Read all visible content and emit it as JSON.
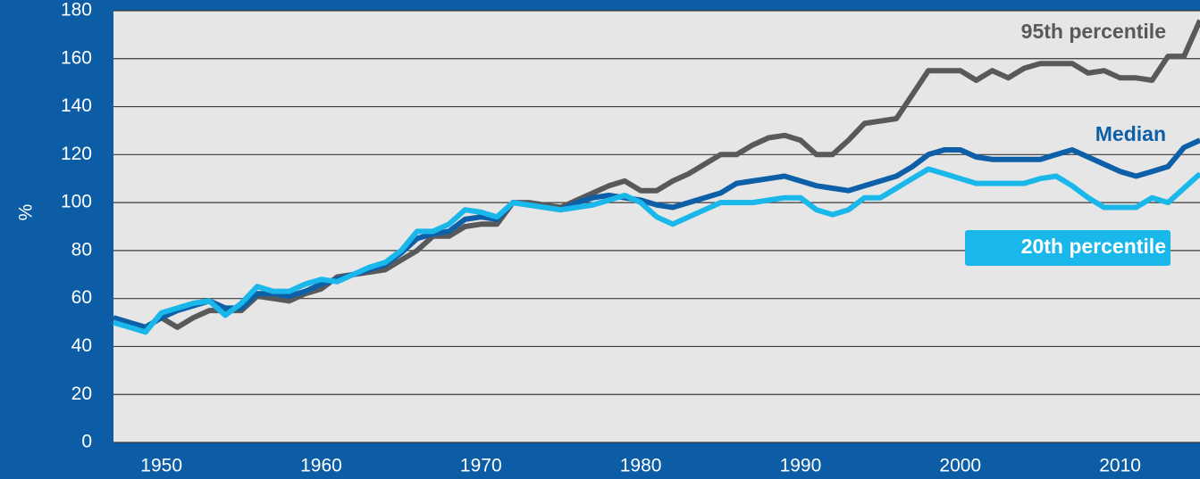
{
  "chart_data": {
    "type": "line",
    "y_label": "%",
    "x": [
      1947,
      1948,
      1949,
      1950,
      1951,
      1952,
      1953,
      1954,
      1955,
      1956,
      1957,
      1958,
      1959,
      1960,
      1961,
      1962,
      1963,
      1964,
      1965,
      1966,
      1967,
      1968,
      1969,
      1970,
      1971,
      1972,
      1973,
      1974,
      1975,
      1976,
      1977,
      1978,
      1979,
      1980,
      1981,
      1982,
      1983,
      1984,
      1985,
      1986,
      1987,
      1988,
      1989,
      1990,
      1991,
      1992,
      1993,
      1994,
      1995,
      1996,
      1997,
      1998,
      1999,
      2000,
      2001,
      2002,
      2003,
      2004,
      2005,
      2006,
      2007,
      2008,
      2009,
      2010,
      2011,
      2012,
      2013,
      2014,
      2015
    ],
    "series": [
      {
        "name": "95th percentile",
        "color": "#58595b",
        "values": [
          52,
          50,
          48,
          52,
          48,
          52,
          55,
          55,
          55,
          61,
          60,
          59,
          62,
          64,
          69,
          70,
          71,
          72,
          76,
          80,
          86,
          86,
          90,
          91,
          91,
          100,
          100,
          99,
          98,
          101,
          104,
          107,
          109,
          105,
          105,
          109,
          112,
          116,
          120,
          120,
          124,
          127,
          128,
          126,
          120,
          120,
          126,
          133,
          134,
          135,
          145,
          155,
          155,
          155,
          151,
          155,
          152,
          156,
          158,
          158,
          158,
          154,
          155,
          152,
          152,
          151,
          161,
          161,
          176
        ]
      },
      {
        "name": "Median",
        "color": "#0d5fa8",
        "values": [
          52,
          50,
          48,
          52,
          55,
          57,
          59,
          56,
          56,
          62,
          62,
          61,
          63,
          66,
          68,
          70,
          72,
          74,
          79,
          85,
          87,
          88,
          93,
          94,
          93,
          100,
          99,
          98,
          97,
          100,
          102,
          103,
          102,
          101,
          99,
          98,
          100,
          102,
          104,
          108,
          109,
          110,
          111,
          109,
          107,
          106,
          105,
          107,
          109,
          111,
          115,
          120,
          122,
          122,
          119,
          118,
          118,
          118,
          118,
          120,
          122,
          119,
          116,
          113,
          111,
          113,
          115,
          123,
          126
        ]
      },
      {
        "name": "20th percentile",
        "color": "#1ab7ea",
        "values": [
          50,
          48,
          46,
          54,
          56,
          58,
          59,
          53,
          58,
          65,
          63,
          63,
          66,
          68,
          67,
          70,
          73,
          75,
          80,
          88,
          88,
          91,
          97,
          96,
          94,
          100,
          99,
          98,
          97,
          98,
          99,
          101,
          103,
          100,
          94,
          91,
          94,
          97,
          100,
          100,
          100,
          101,
          102,
          102,
          97,
          95,
          97,
          102,
          102,
          106,
          110,
          114,
          112,
          110,
          108,
          108,
          108,
          108,
          110,
          111,
          107,
          102,
          98,
          98,
          98,
          102,
          100,
          106,
          112
        ]
      }
    ],
    "xlim": [
      1947,
      2015
    ],
    "xticks": [
      1950,
      1960,
      1970,
      1980,
      1990,
      2000,
      2010
    ],
    "ylim": [
      0,
      180
    ],
    "yticks": [
      0,
      20,
      40,
      60,
      80,
      100,
      120,
      140,
      160,
      180
    ],
    "grid": true
  }
}
